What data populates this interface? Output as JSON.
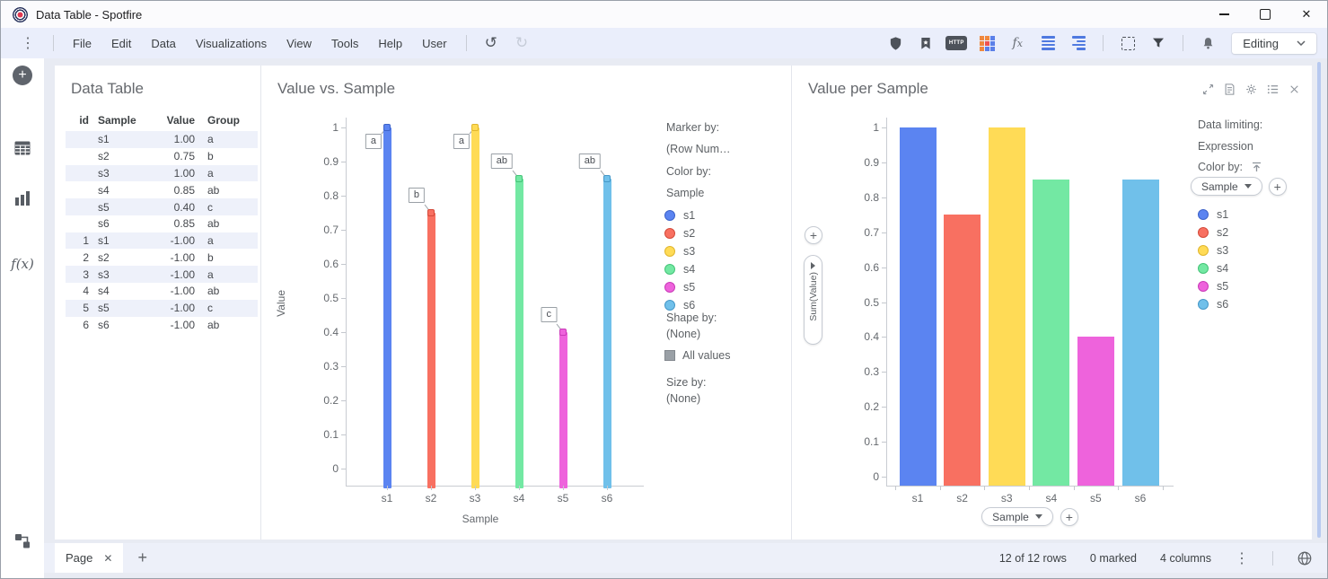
{
  "window": {
    "title": "Data Table - Spotfire"
  },
  "icons": {
    "add": "+",
    "close": "✕",
    "kebab": "⋮",
    "undo": "↺",
    "redo": "↻"
  },
  "menu": {
    "items": [
      "File",
      "Edit",
      "Data",
      "Visualizations",
      "View",
      "Tools",
      "Help",
      "User"
    ],
    "editing_label": "Editing"
  },
  "toolbar": {
    "right_groups": [
      [
        "shield",
        "bookmarks",
        "http-browser",
        "apps-grid",
        "function-fx",
        "rows",
        "outline"
      ],
      [
        "marquee-select",
        "filter"
      ],
      [
        "notifications"
      ]
    ]
  },
  "sidebar": {
    "top_icons": [
      "add",
      "data-table",
      "visualizations",
      "data-functions"
    ],
    "bottom_icons": [
      "data-canvas"
    ]
  },
  "table_panel": {
    "title": "Data Table",
    "columns": [
      "id",
      "Sample",
      "Value",
      "Group"
    ],
    "rows": [
      [
        "",
        "s1",
        "1.00",
        "a"
      ],
      [
        "",
        "s2",
        "0.75",
        "b"
      ],
      [
        "",
        "s3",
        "1.00",
        "a"
      ],
      [
        "",
        "s4",
        "0.85",
        "ab"
      ],
      [
        "",
        "s5",
        "0.40",
        "c"
      ],
      [
        "",
        "s6",
        "0.85",
        "ab"
      ],
      [
        "1",
        "s1",
        "-1.00",
        "a"
      ],
      [
        "2",
        "s2",
        "-1.00",
        "b"
      ],
      [
        "3",
        "s3",
        "-1.00",
        "a"
      ],
      [
        "4",
        "s4",
        "-1.00",
        "ab"
      ],
      [
        "5",
        "s5",
        "-1.00",
        "c"
      ],
      [
        "6",
        "s6",
        "-1.00",
        "ab"
      ]
    ]
  },
  "series": [
    {
      "label": "s1",
      "color": "#5B84F1",
      "dark": "#3D63C9"
    },
    {
      "label": "s2",
      "color": "#F87061",
      "dark": "#D44A3A"
    },
    {
      "label": "s3",
      "color": "#FFDB56",
      "dark": "#E0B62E"
    },
    {
      "label": "s4",
      "color": "#73E8A3",
      "dark": "#45C478"
    },
    {
      "label": "s5",
      "color": "#EE63DC",
      "dark": "#C93BB8"
    },
    {
      "label": "s6",
      "color": "#70C0EA",
      "dark": "#4698C8"
    }
  ],
  "scatter_panel": {
    "title": "Value vs. Sample",
    "legend": {
      "marker_by_label": "Marker by:",
      "marker_by_value": "(Row Num…",
      "color_by_label": "Color by:",
      "color_by_value": "Sample",
      "shape_by_label": "Shape by:",
      "shape_by_value": "(None)",
      "all_values_label": "All values",
      "size_by_label": "Size by:",
      "size_by_value": "(None)"
    }
  },
  "bar_panel": {
    "title": "Value per Sample",
    "header_icons": [
      "maximize",
      "comment",
      "settings",
      "legend",
      "close-x"
    ],
    "y_selector_label": "Sum(Value)",
    "x_selector_label": "Sample",
    "side": {
      "data_limiting_label": "Data limiting:",
      "expression_label": "Expression",
      "color_by_label": "Color by:",
      "color_selector_label": "Sample"
    }
  },
  "chart_data": [
    {
      "type": "bar",
      "style": "lollipop-with-callout-labels",
      "title": "Value vs. Sample",
      "categories": [
        "s1",
        "s2",
        "s3",
        "s4",
        "s5",
        "s6"
      ],
      "values": [
        1.0,
        0.75,
        1.0,
        0.85,
        0.4,
        0.85
      ],
      "point_labels": [
        "a",
        "b",
        "a",
        "ab",
        "c",
        "ab"
      ],
      "colors": [
        "#5B84F1",
        "#F87061",
        "#FFDB56",
        "#73E8A3",
        "#EE63DC",
        "#70C0EA"
      ],
      "xlabel": "Sample",
      "ylabel": "Value",
      "ylim": [
        0,
        1
      ],
      "yticks": [
        0,
        0.1,
        0.2,
        0.3,
        0.4,
        0.5,
        0.6,
        0.7,
        0.8,
        0.9,
        1
      ],
      "grid": false,
      "legend_position": "right"
    },
    {
      "type": "bar",
      "title": "Value per Sample",
      "categories": [
        "s1",
        "s2",
        "s3",
        "s4",
        "s5",
        "s6"
      ],
      "values": [
        1.0,
        0.75,
        1.0,
        0.85,
        0.4,
        0.85
      ],
      "colors": [
        "#5B84F1",
        "#F87061",
        "#FFDB56",
        "#73E8A3",
        "#EE63DC",
        "#70C0EA"
      ],
      "xlabel": "Sample",
      "ylabel": "Sum(Value)",
      "ylim": [
        0,
        1
      ],
      "yticks": [
        0,
        0.1,
        0.2,
        0.3,
        0.4,
        0.5,
        0.6,
        0.7,
        0.8,
        0.9,
        1
      ],
      "grid": false,
      "legend_position": "right"
    }
  ],
  "status_bar": {
    "page_tab_label": "Page",
    "rows_info": "12 of 12 rows",
    "marked_info": "0 marked",
    "columns_info": "4 columns"
  }
}
